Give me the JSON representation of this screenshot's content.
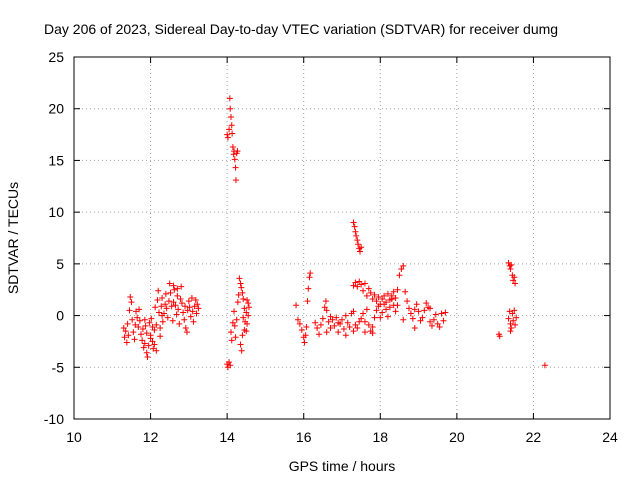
{
  "chart_data": {
    "type": "scatter",
    "title": "Day 206 of 2023, Sidereal Day-to-day VTEC variation (SDTVAR) for receiver dumg",
    "xlabel": "GPS time / hours",
    "ylabel": "SDTVAR / TECUs",
    "xlim": [
      10,
      24
    ],
    "ylim": [
      -10,
      25
    ],
    "xticks": [
      "10",
      "12",
      "14",
      "16",
      "18",
      "20",
      "22",
      "24"
    ],
    "yticks": [
      "-10",
      "-5",
      "0",
      "5",
      "10",
      "15",
      "20",
      "25"
    ],
    "grid": true,
    "marker": "+",
    "color": "#ff0000",
    "series": [
      {
        "name": "SDTVAR",
        "points": [
          [
            11.3,
            -1.2
          ],
          [
            11.32,
            -2.1
          ],
          [
            11.35,
            -1.5
          ],
          [
            11.38,
            -2.6
          ],
          [
            11.4,
            -0.8
          ],
          [
            11.42,
            -1.9
          ],
          [
            11.45,
            0.5
          ],
          [
            11.47,
            1.8
          ],
          [
            11.5,
            1.3
          ],
          [
            11.52,
            -0.4
          ],
          [
            11.55,
            -1.6
          ],
          [
            11.58,
            -2.3
          ],
          [
            11.6,
            -0.9
          ],
          [
            11.62,
            0.4
          ],
          [
            11.65,
            -0.2
          ],
          [
            11.68,
            -1.1
          ],
          [
            11.7,
            0.6
          ],
          [
            11.72,
            -0.5
          ],
          [
            11.75,
            -1.8
          ],
          [
            11.78,
            -2.4
          ],
          [
            11.8,
            -1.3
          ],
          [
            11.82,
            -3.1
          ],
          [
            11.85,
            -2.7
          ],
          [
            11.87,
            -1.0
          ],
          [
            11.9,
            -3.6
          ],
          [
            11.92,
            -4.0
          ],
          [
            11.95,
            -2.9
          ],
          [
            11.97,
            -0.7
          ],
          [
            12.0,
            -1.9
          ],
          [
            12.02,
            -0.3
          ],
          [
            12.05,
            -2.5
          ],
          [
            12.07,
            -3.2
          ],
          [
            12.1,
            -1.4
          ],
          [
            12.12,
            0.8
          ],
          [
            12.15,
            -0.9
          ],
          [
            12.18,
            1.5
          ],
          [
            12.2,
            2.4
          ],
          [
            12.22,
            0.3
          ],
          [
            12.25,
            -1.2
          ],
          [
            12.28,
            0.9
          ],
          [
            12.3,
            1.7
          ],
          [
            12.32,
            -0.6
          ],
          [
            12.35,
            0.2
          ],
          [
            12.38,
            1.1
          ],
          [
            12.4,
            2.1
          ],
          [
            12.42,
            0.7
          ],
          [
            12.45,
            -0.2
          ],
          [
            12.48,
            1.4
          ],
          [
            12.5,
            3.1
          ],
          [
            12.52,
            2.2
          ],
          [
            12.55,
            0.9
          ],
          [
            12.58,
            -0.5
          ],
          [
            12.6,
            1.3
          ],
          [
            12.62,
            2.5
          ],
          [
            12.65,
            1.0
          ],
          [
            12.68,
            0.1
          ],
          [
            12.7,
            1.9
          ],
          [
            12.72,
            0.6
          ],
          [
            12.75,
            -0.8
          ],
          [
            12.78,
            1.6
          ],
          [
            12.8,
            2.8
          ],
          [
            12.82,
            1.2
          ],
          [
            12.85,
            0.3
          ],
          [
            12.88,
            -0.4
          ],
          [
            12.9,
            0.9
          ],
          [
            12.92,
            -1.2
          ],
          [
            12.95,
            -1.6
          ],
          [
            12.97,
            0.5
          ],
          [
            13.0,
            1.4
          ],
          [
            13.02,
            0.8
          ],
          [
            13.05,
            -0.1
          ],
          [
            13.08,
            1.7
          ],
          [
            13.1,
            0.4
          ],
          [
            13.12,
            -0.6
          ],
          [
            13.15,
            0.9
          ],
          [
            13.18,
            1.5
          ],
          [
            13.2,
            0.2
          ],
          [
            13.22,
            1.1
          ],
          [
            13.25,
            0.7
          ],
          [
            12.0,
            -2.2
          ],
          [
            12.05,
            -1.1
          ],
          [
            12.1,
            -2.8
          ],
          [
            12.15,
            -3.4
          ],
          [
            11.85,
            -0.4
          ],
          [
            11.9,
            -1.7
          ],
          [
            12.25,
            -2.0
          ],
          [
            12.3,
            0.0
          ],
          [
            12.6,
            2.9
          ],
          [
            12.7,
            2.6
          ],
          [
            14.0,
            17.5
          ],
          [
            14.02,
            17.2
          ],
          [
            14.05,
            18.0
          ],
          [
            14.07,
            21.0
          ],
          [
            14.08,
            20.0
          ],
          [
            14.1,
            19.2
          ],
          [
            14.12,
            18.4
          ],
          [
            14.13,
            17.6
          ],
          [
            14.15,
            16.3
          ],
          [
            14.17,
            15.6
          ],
          [
            14.18,
            15.9
          ],
          [
            14.2,
            15.1
          ],
          [
            14.22,
            14.3
          ],
          [
            14.23,
            13.1
          ],
          [
            14.25,
            15.7
          ],
          [
            14.27,
            15.9
          ],
          [
            14.0,
            -4.7
          ],
          [
            14.02,
            -5.0
          ],
          [
            14.05,
            -4.5
          ],
          [
            14.08,
            -4.8
          ],
          [
            14.1,
            -1.6
          ],
          [
            14.12,
            -2.4
          ],
          [
            14.15,
            -0.7
          ],
          [
            14.18,
            0.4
          ],
          [
            14.2,
            -1.0
          ],
          [
            14.22,
            -2.1
          ],
          [
            14.25,
            -0.4
          ],
          [
            14.28,
            1.3
          ],
          [
            14.3,
            2.0
          ],
          [
            14.32,
            3.6
          ],
          [
            14.35,
            3.1
          ],
          [
            14.37,
            2.7
          ],
          [
            14.4,
            2.2
          ],
          [
            14.42,
            1.6
          ],
          [
            14.45,
            0.7
          ],
          [
            14.47,
            -0.6
          ],
          [
            14.5,
            -1.5
          ],
          [
            14.52,
            1.5
          ],
          [
            14.55,
            1.2
          ],
          [
            14.57,
            0.8
          ],
          [
            14.35,
            -2.8
          ],
          [
            14.38,
            -3.4
          ],
          [
            14.4,
            -1.9
          ],
          [
            14.42,
            -0.2
          ],
          [
            14.45,
            -1.4
          ],
          [
            14.5,
            0.3
          ],
          [
            14.52,
            -0.8
          ],
          [
            14.55,
            0.0
          ],
          [
            15.8,
            1.0
          ],
          [
            15.85,
            -0.4
          ],
          [
            15.9,
            -0.8
          ],
          [
            15.95,
            -1.4
          ],
          [
            16.0,
            -2.1
          ],
          [
            16.02,
            -2.6
          ],
          [
            16.05,
            -1.9
          ],
          [
            16.07,
            -1.1
          ],
          [
            16.1,
            1.4
          ],
          [
            16.12,
            2.6
          ],
          [
            16.15,
            3.7
          ],
          [
            16.17,
            4.1
          ],
          [
            16.3,
            -0.7
          ],
          [
            16.35,
            -1.2
          ],
          [
            16.4,
            -1.8
          ],
          [
            16.45,
            -0.9
          ],
          [
            16.5,
            -0.3
          ],
          [
            16.55,
            0.8
          ],
          [
            16.58,
            1.4
          ],
          [
            16.6,
            0.5
          ],
          [
            16.65,
            -0.6
          ],
          [
            16.7,
            -1.2
          ],
          [
            16.75,
            -0.4
          ],
          [
            16.8,
            -1.0
          ],
          [
            16.85,
            -0.2
          ],
          [
            16.9,
            -1.6
          ],
          [
            16.95,
            -0.8
          ],
          [
            17.0,
            -0.4
          ],
          [
            17.05,
            -1.3
          ],
          [
            17.1,
            -1.9
          ],
          [
            17.15,
            -0.7
          ],
          [
            17.2,
            -1.1
          ],
          [
            17.25,
            0.2
          ],
          [
            17.3,
            0.4
          ],
          [
            17.35,
            -0.9
          ],
          [
            17.4,
            -1.2
          ],
          [
            17.45,
            -0.6
          ],
          [
            17.5,
            -0.3
          ],
          [
            17.55,
            0.2
          ],
          [
            17.6,
            -0.6
          ],
          [
            17.65,
            0.6
          ],
          [
            17.7,
            -0.9
          ],
          [
            17.75,
            -1.5
          ],
          [
            17.8,
            -1.1
          ],
          [
            17.85,
            -0.2
          ],
          [
            17.9,
            0.5
          ],
          [
            17.95,
            0.9
          ],
          [
            18.0,
            -0.2
          ],
          [
            18.05,
            0.3
          ],
          [
            18.1,
            1.1
          ],
          [
            18.15,
            0.6
          ],
          [
            18.2,
            -0.1
          ],
          [
            18.25,
            0.8
          ],
          [
            18.3,
            1.6
          ],
          [
            18.35,
            1.0
          ],
          [
            18.4,
            0.4
          ],
          [
            18.45,
            2.5
          ],
          [
            18.5,
            3.9
          ],
          [
            18.55,
            4.5
          ],
          [
            18.6,
            4.8
          ],
          [
            18.65,
            2.3
          ],
          [
            18.7,
            1.4
          ],
          [
            18.75,
            0.7
          ],
          [
            18.8,
            0.2
          ],
          [
            18.85,
            -0.3
          ],
          [
            18.9,
            0.6
          ],
          [
            18.95,
            1.1
          ],
          [
            19.0,
            0.4
          ],
          [
            19.05,
            -0.5
          ],
          [
            19.1,
            -0.2
          ],
          [
            19.15,
            0.5
          ],
          [
            19.2,
            1.2
          ],
          [
            19.25,
            0.8
          ],
          [
            19.3,
            -0.6
          ],
          [
            19.35,
            -1.0
          ],
          [
            19.4,
            -0.4
          ],
          [
            19.45,
            0.1
          ],
          [
            19.5,
            -0.8
          ],
          [
            19.55,
            -1.1
          ],
          [
            19.6,
            0.2
          ],
          [
            19.65,
            -0.5
          ],
          [
            19.7,
            0.3
          ],
          [
            17.3,
            2.9
          ],
          [
            17.35,
            3.2
          ],
          [
            17.4,
            2.8
          ],
          [
            17.45,
            3.3
          ],
          [
            17.5,
            3.0
          ],
          [
            17.55,
            2.4
          ],
          [
            17.6,
            3.1
          ],
          [
            17.65,
            1.9
          ],
          [
            17.7,
            2.6
          ],
          [
            17.75,
            2.2
          ],
          [
            17.8,
            1.6
          ],
          [
            17.85,
            2.0
          ],
          [
            17.9,
            1.4
          ],
          [
            17.95,
            1.8
          ],
          [
            18.0,
            1.1
          ],
          [
            18.05,
            1.6
          ],
          [
            18.1,
            1.9
          ],
          [
            18.15,
            1.3
          ],
          [
            18.2,
            2.1
          ],
          [
            18.25,
            1.5
          ],
          [
            18.3,
            1.9
          ],
          [
            18.35,
            2.3
          ],
          [
            18.4,
            1.7
          ],
          [
            18.45,
            1.0
          ],
          [
            17.3,
            9.0
          ],
          [
            17.33,
            8.6
          ],
          [
            17.35,
            8.1
          ],
          [
            17.37,
            7.7
          ],
          [
            17.4,
            7.3
          ],
          [
            17.42,
            6.9
          ],
          [
            17.45,
            6.5
          ],
          [
            17.47,
            6.2
          ],
          [
            17.5,
            6.6
          ],
          [
            16.6,
            -1.6
          ],
          [
            16.7,
            -0.1
          ],
          [
            16.9,
            -0.7
          ],
          [
            17.1,
            0.0
          ],
          [
            17.3,
            -1.5
          ],
          [
            17.6,
            -1.6
          ],
          [
            17.8,
            -1.7
          ],
          [
            18.6,
            -0.4
          ],
          [
            18.9,
            -1.2
          ],
          [
            19.3,
            0.7
          ],
          [
            21.1,
            -1.8
          ],
          [
            21.12,
            -2.0
          ],
          [
            21.35,
            5.1
          ],
          [
            21.38,
            4.8
          ],
          [
            21.4,
            4.5
          ],
          [
            21.42,
            4.9
          ],
          [
            21.45,
            3.9
          ],
          [
            21.47,
            3.4
          ],
          [
            21.5,
            3.7
          ],
          [
            21.52,
            3.1
          ],
          [
            21.35,
            -0.3
          ],
          [
            21.38,
            0.4
          ],
          [
            21.4,
            -0.8
          ],
          [
            21.42,
            -1.2
          ],
          [
            21.45,
            0.2
          ],
          [
            21.47,
            -0.5
          ],
          [
            21.5,
            0.5
          ],
          [
            21.52,
            -0.9
          ],
          [
            21.55,
            -0.2
          ],
          [
            21.4,
            -1.5
          ],
          [
            22.3,
            -4.8
          ]
        ]
      }
    ]
  }
}
